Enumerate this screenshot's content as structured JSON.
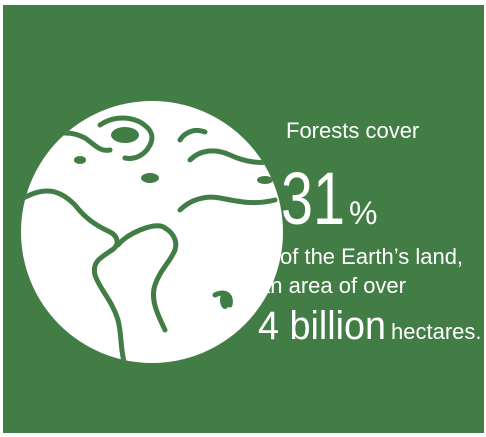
{
  "infographic": {
    "line1": "Forests cover",
    "percent_number": "31",
    "percent_sign": "%",
    "line2": "of the Earth’s land,",
    "line3": "an area of over",
    "big_amount": "4 billion",
    "unit": "hectares."
  }
}
